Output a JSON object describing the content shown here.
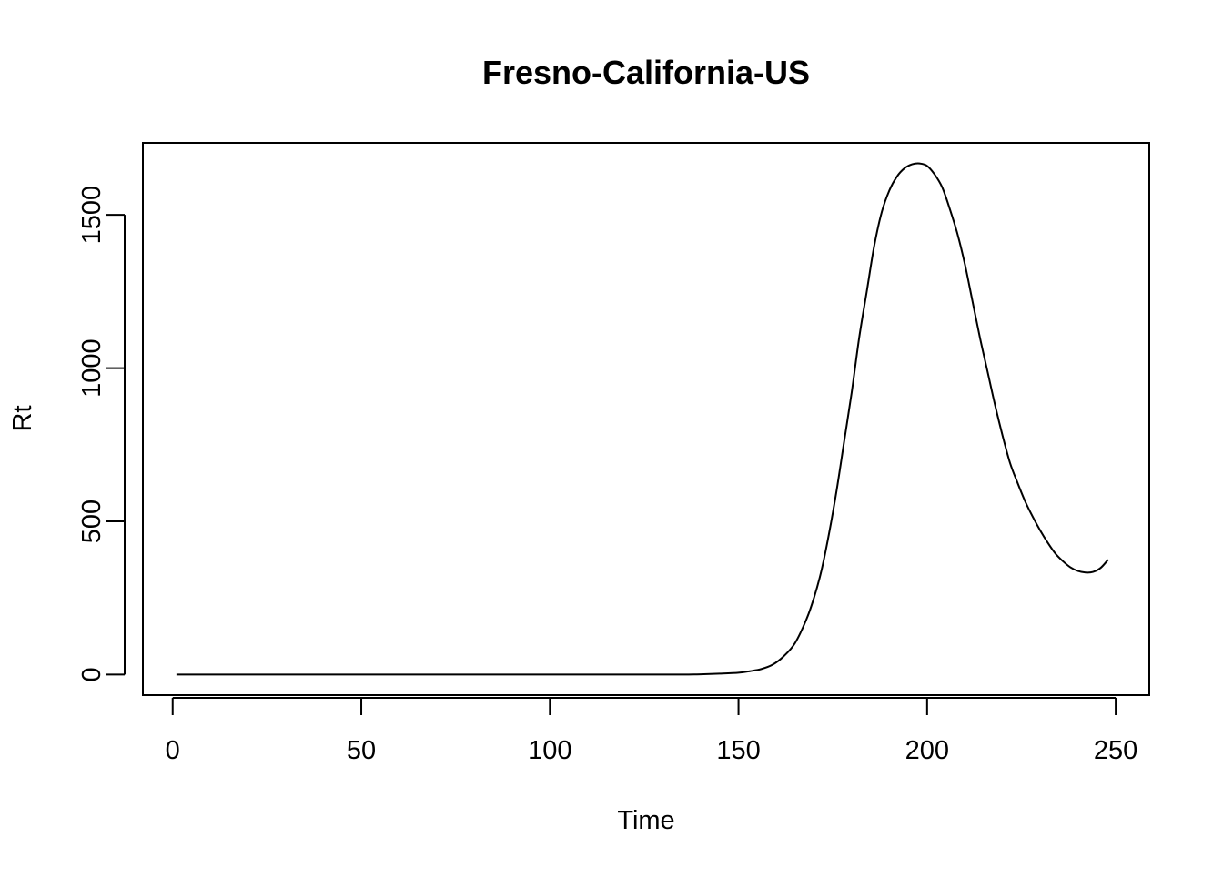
{
  "chart_data": {
    "type": "line",
    "title": "Fresno-California-US",
    "xlabel": "Time",
    "ylabel": "Rt",
    "xlim": [
      -7.9,
      258.9
    ],
    "ylim": [
      -67,
      1735
    ],
    "x_ticks": [
      0,
      50,
      100,
      150,
      200,
      250
    ],
    "y_ticks": [
      0,
      500,
      1000,
      1500
    ],
    "grid": false,
    "legend": "none",
    "line_color": "#000000",
    "series": [
      {
        "x": [
          1,
          20,
          40,
          60,
          80,
          100,
          120,
          135,
          140,
          145,
          150,
          153,
          156,
          159,
          162,
          165,
          168,
          170,
          172,
          174,
          176,
          178,
          180,
          182,
          184,
          186,
          188,
          190,
          192,
          194,
          196,
          198,
          200,
          202,
          204,
          206,
          208,
          210,
          212,
          214,
          216,
          218,
          220,
          222,
          224,
          226,
          228,
          230,
          232,
          234,
          236,
          238,
          240,
          242,
          244,
          246,
          248
        ],
        "y": [
          0,
          0,
          0,
          0,
          0,
          0,
          0,
          0,
          1,
          3,
          6,
          11,
          18,
          32,
          60,
          103,
          180,
          250,
          340,
          460,
          600,
          760,
          920,
          1100,
          1250,
          1400,
          1510,
          1580,
          1625,
          1652,
          1665,
          1668,
          1660,
          1632,
          1590,
          1520,
          1440,
          1340,
          1220,
          1100,
          990,
          880,
          780,
          690,
          625,
          565,
          515,
          470,
          430,
          395,
          370,
          350,
          338,
          333,
          335,
          348,
          375
        ]
      }
    ]
  }
}
